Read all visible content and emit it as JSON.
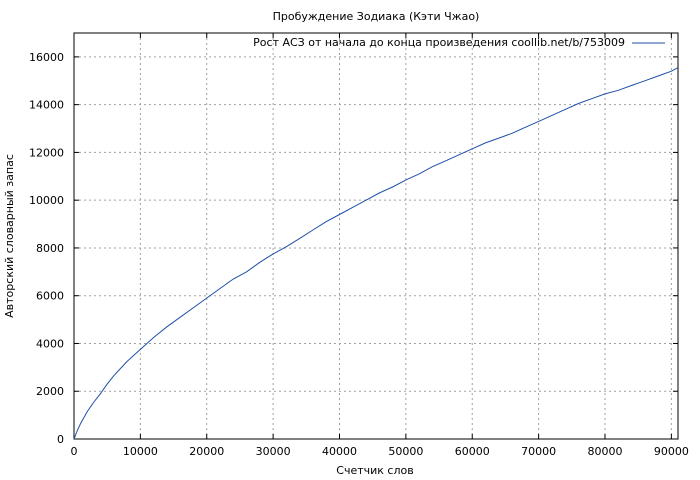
{
  "chart_data": {
    "type": "line",
    "title": "Пробуждение Зодиака (Кэти Чжао)",
    "xlabel": "Счетчик слов",
    "ylabel": "Авторский словарный запас",
    "xlim": [
      0,
      91000
    ],
    "ylim": [
      0,
      17000
    ],
    "x_ticks": [
      0,
      10000,
      20000,
      30000,
      40000,
      50000,
      60000,
      70000,
      80000,
      90000
    ],
    "y_ticks": [
      0,
      2000,
      4000,
      6000,
      8000,
      10000,
      12000,
      14000,
      16000
    ],
    "grid": true,
    "legend_position": "top-right",
    "series": [
      {
        "name": "Рост АСЗ от начала до конца произведения coollib.net/b/753009",
        "color": "#1f4fa8",
        "x": [
          0,
          500,
          1000,
          2000,
          3000,
          4000,
          5000,
          6000,
          7000,
          8000,
          9000,
          10000,
          12000,
          14000,
          16000,
          18000,
          20000,
          22000,
          24000,
          26000,
          28000,
          30000,
          32000,
          34000,
          36000,
          38000,
          40000,
          42000,
          44000,
          46000,
          48000,
          50000,
          52000,
          54000,
          56000,
          58000,
          60000,
          62000,
          64000,
          66000,
          68000,
          70000,
          72000,
          74000,
          76000,
          78000,
          80000,
          82000,
          84000,
          86000,
          88000,
          90000,
          91000
        ],
        "y": [
          0,
          350,
          650,
          1150,
          1550,
          1900,
          2300,
          2650,
          2950,
          3250,
          3500,
          3750,
          4250,
          4700,
          5100,
          5500,
          5900,
          6300,
          6700,
          7000,
          7400,
          7750,
          8050,
          8400,
          8750,
          9100,
          9400,
          9700,
          10000,
          10300,
          10550,
          10850,
          11100,
          11400,
          11650,
          11900,
          12150,
          12400,
          12600,
          12800,
          13050,
          13300,
          13550,
          13800,
          14050,
          14250,
          14450,
          14600,
          14800,
          15000,
          15200,
          15400,
          15550
        ]
      }
    ]
  }
}
